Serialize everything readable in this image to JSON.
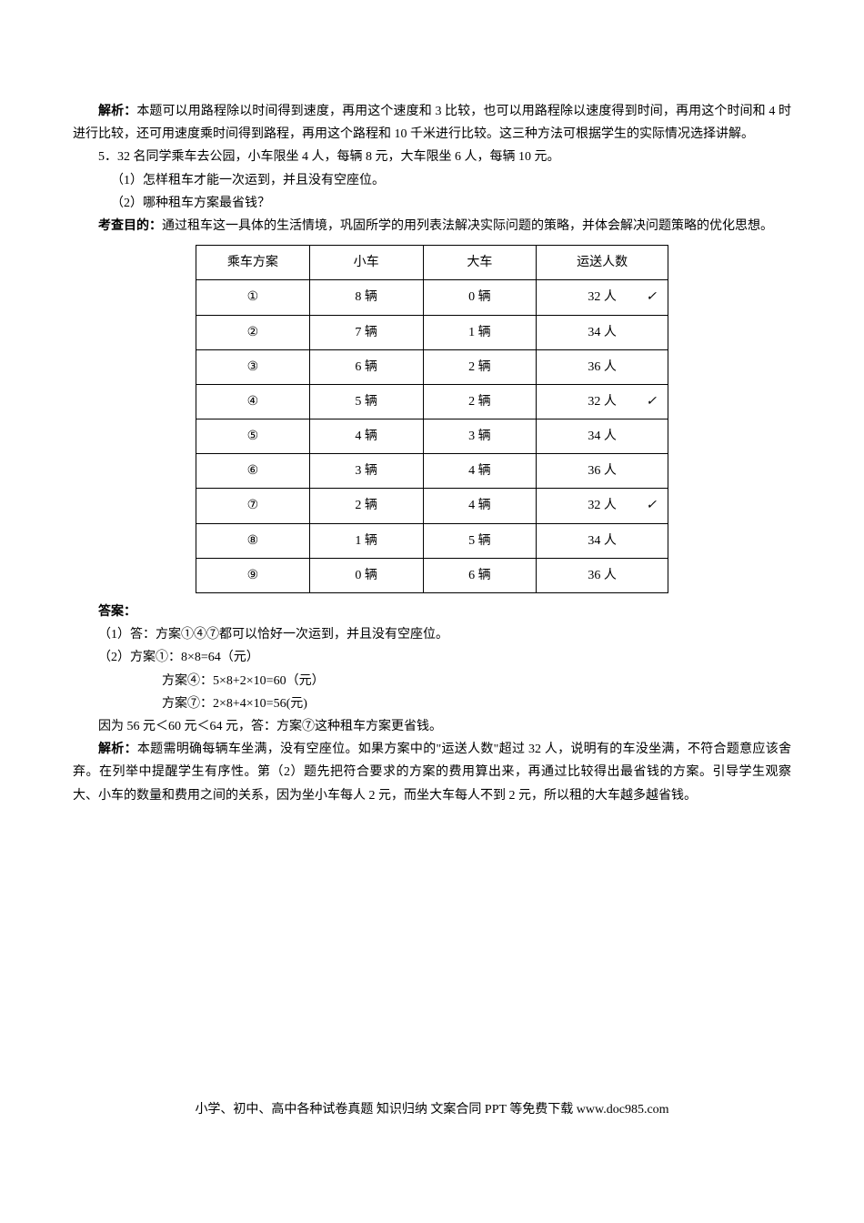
{
  "analysis_prefix": "解析：",
  "analysis_text": "本题可以用路程除以时间得到速度，再用这个速度和 3 比较，也可以用路程除以速度得到时间，再用这个时间和 4 时进行比较，还可用速度乘时间得到路程，再用这个路程和 10 千米进行比较。这三种方法可根据学生的实际情况选择讲解。",
  "q5_line1": "5．32 名同学乘车去公园，小车限坐 4 人，每辆 8 元，大车限坐 6 人，每辆 10 元。",
  "q5_sub1": "（1）怎样租车才能一次运到，并且没有空座位。",
  "q5_sub2": "（2）哪种租车方案最省钱？",
  "purpose_prefix": "考查目的：",
  "purpose_text": "通过租车这一具体的生活情境，巩固所学的用列表法解决实际问题的策略，并体会解决问题策略的优化思想。",
  "table": {
    "headers": [
      "乘车方案",
      "小车",
      "大车",
      "运送人数"
    ],
    "rows": [
      {
        "plan": "①",
        "small": "8 辆",
        "big": "0 辆",
        "people": "32 人",
        "check": true
      },
      {
        "plan": "②",
        "small": "7 辆",
        "big": "1 辆",
        "people": "34 人",
        "check": false
      },
      {
        "plan": "③",
        "small": "6 辆",
        "big": "2 辆",
        "people": "36 人",
        "check": false
      },
      {
        "plan": "④",
        "small": "5 辆",
        "big": "2 辆",
        "people": "32 人",
        "check": true
      },
      {
        "plan": "⑤",
        "small": "4 辆",
        "big": "3 辆",
        "people": "34 人",
        "check": false
      },
      {
        "plan": "⑥",
        "small": "3 辆",
        "big": "4 辆",
        "people": "36 人",
        "check": false
      },
      {
        "plan": "⑦",
        "small": "2 辆",
        "big": "4 辆",
        "people": "32 人",
        "check": true
      },
      {
        "plan": "⑧",
        "small": "1 辆",
        "big": "5 辆",
        "people": "34 人",
        "check": false
      },
      {
        "plan": "⑨",
        "small": "0 辆",
        "big": "6 辆",
        "people": "36 人",
        "check": false
      }
    ],
    "check_mark": "✓",
    "col_widths": [
      "125px",
      "125px",
      "125px",
      "145px"
    ]
  },
  "answer_prefix": "答案：",
  "answer1": "（1）答：方案①④⑦都可以恰好一次运到，并且没有空座位。",
  "answer2_l1": "（2）方案①：8×8=64（元）",
  "answer2_l2": "方案④：5×8+2×10=60（元）",
  "answer2_l3": "方案⑦：2×8+4×10=56(元)",
  "answer2_conclusion": "因为 56 元＜60 元＜64 元，答：方案⑦这种租车方案更省钱。",
  "analysis2_prefix": "解析：",
  "analysis2_text": "本题需明确每辆车坐满，没有空座位。如果方案中的\"运送人数\"超过 32 人，说明有的车没坐满，不符合题意应该舍弃。在列举中提醒学生有序性。第（2）题先把符合要求的方案的费用算出来，再通过比较得出最省钱的方案。引导学生观察大、小车的数量和费用之间的关系，因为坐小车每人 2 元，而坐大车每人不到 2 元，所以租的大车越多越省钱。",
  "footer_text": "小学、初中、高中各种试卷真题 知识归纳 文案合同 PPT 等免费下载 www.doc985.com"
}
